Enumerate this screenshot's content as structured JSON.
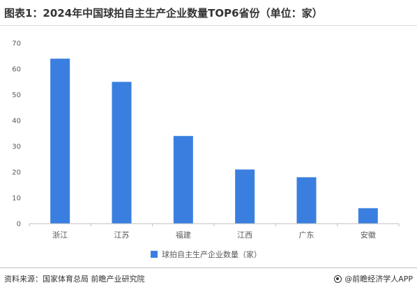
{
  "title": "图表1：2024年中国球拍自主生产企业数量TOP6省份（单位：家）",
  "source": "资料来源：国家体育总局 前瞻产业研究院",
  "brand": "@前瞻经济学人APP",
  "colors": {
    "bar": "#3a7fe0",
    "grid": "#e8e8e8",
    "axis": "#bfbfbf"
  },
  "chart_data": {
    "type": "bar",
    "categories": [
      "浙江",
      "江苏",
      "福建",
      "江西",
      "广东",
      "安徽"
    ],
    "series": [
      {
        "name": "球拍自主生产企业数量（家）",
        "values": [
          64,
          55,
          34,
          21,
          18,
          6
        ]
      }
    ],
    "ylim": [
      0,
      70
    ],
    "yticks": [
      0,
      10,
      20,
      30,
      40,
      50,
      60,
      70
    ],
    "grid": false,
    "legend": "bottom"
  }
}
